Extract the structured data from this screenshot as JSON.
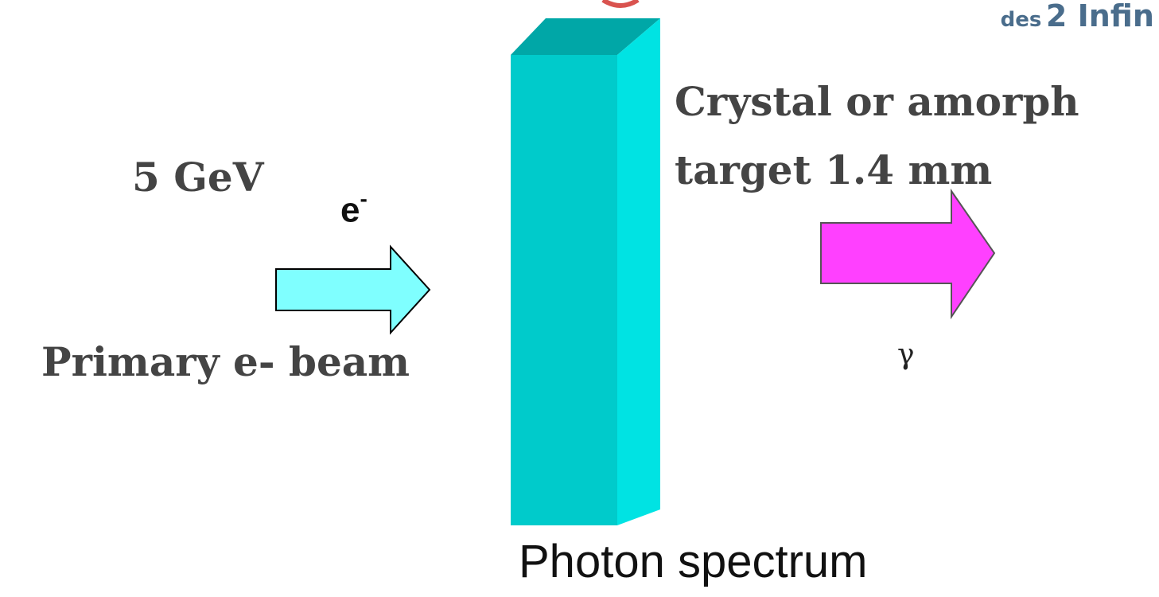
{
  "logo": {
    "text_small": "des",
    "text_big": "2 Infin"
  },
  "labels": {
    "energy": "5 GeV",
    "electron": "e",
    "electron_charge": "-",
    "primary_beam": "Primary e- beam",
    "target_line1": "Crystal or amorph",
    "target_line2": "target 1.4 mm",
    "gamma": "γ",
    "spectrum": "Photon spectrum"
  },
  "colors": {
    "text": "#444444",
    "beam_arrow": "#7fffff",
    "photon_arrow": "#ff40ff",
    "target_front": "#00cbcb",
    "target_side": "#00e3e3",
    "target_top": "#00a7a7",
    "logo": "#4a6d8c",
    "logo_accent": "#d9534f"
  }
}
